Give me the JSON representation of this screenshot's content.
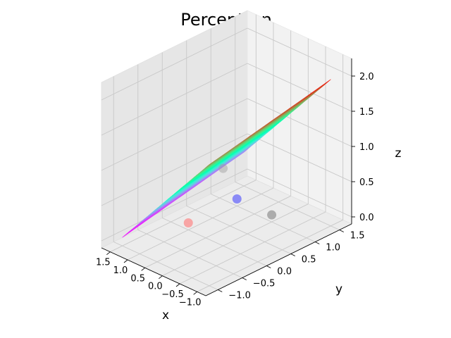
{
  "chart_data": {
    "type": "surface3d",
    "title": "Perceptron",
    "xlabel": "x",
    "ylabel": "y",
    "zlabel": "z",
    "xlim": [
      -1.25,
      1.75
    ],
    "ylim": [
      -1.25,
      1.75
    ],
    "zlim": [
      -0.1,
      2.25
    ],
    "xticks": [
      "−1.0",
      "−0.5",
      "0.0",
      "0.5",
      "1.0",
      "1.5"
    ],
    "yticks": [
      "−1.0",
      "−0.5",
      "0.0",
      "0.5",
      "1.0",
      "1.5"
    ],
    "zticks": [
      "0.0",
      "0.5",
      "1.0",
      "1.5",
      "2.0"
    ],
    "xtick_values": [
      -1.0,
      -0.5,
      0.0,
      0.5,
      1.0,
      1.5
    ],
    "ytick_values": [
      -1.0,
      -0.5,
      0.0,
      0.5,
      1.0,
      1.5
    ],
    "ztick_values": [
      0.0,
      0.5,
      1.0,
      1.5,
      2.0
    ],
    "grid": true,
    "colormap": "rainbow",
    "surface": {
      "x_range": [
        -1.0,
        1.5
      ],
      "y_range": [
        -1.0,
        1.5
      ],
      "corners_z": {
        "x_min_y_min": 1.62,
        "x_max_y_min": 0.02,
        "x_min_y_max": 1.98,
        "x_max_y_max": 0.38
      }
    },
    "points": [
      {
        "x": 0.0,
        "y": 0.0,
        "z": 1.0,
        "color": "#9e9e9e",
        "alpha": 0.45
      },
      {
        "x": 1.0,
        "y": 0.0,
        "z": 0.0,
        "color": "#ff7f7f",
        "alpha": 0.65
      },
      {
        "x": 0.0,
        "y": 1.0,
        "z": 0.0,
        "color": "#606060",
        "alpha": 0.45
      },
      {
        "x": 1.0,
        "y": 1.0,
        "z": 0.0,
        "color": "#3a3aff",
        "alpha": 0.55
      }
    ]
  }
}
